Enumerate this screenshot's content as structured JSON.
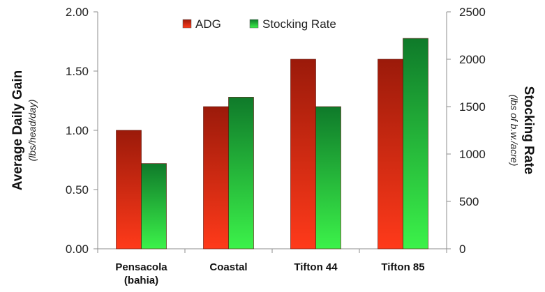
{
  "chart_data": {
    "type": "bar",
    "categories": [
      [
        "Pensacola",
        "(bahia)"
      ],
      [
        "Coastal"
      ],
      [
        "Tifton 44"
      ],
      [
        "Tifton 85"
      ]
    ],
    "series": [
      {
        "name": "ADG",
        "axis": "left",
        "values": [
          1.0,
          1.2,
          1.6,
          1.6
        ],
        "color_top": "#9b1a0a",
        "color_bottom": "#ff3a1a"
      },
      {
        "name": "Stocking Rate",
        "axis": "right",
        "values": [
          900,
          1600,
          1500,
          2220
        ],
        "color_top": "#0f7a2a",
        "color_bottom": "#3cf24a"
      }
    ],
    "y_left": {
      "label": "Average Daily Gain",
      "sublabel": "(lbs/head/day)",
      "lim": [
        0,
        2.0
      ],
      "ticks": [
        "0.00",
        "0.50",
        "1.00",
        "1.50",
        "2.00"
      ]
    },
    "y_right": {
      "label": "Stocking Rate",
      "sublabel": "(lbs of b.w./acre)",
      "lim": [
        0,
        2500
      ],
      "ticks": [
        "0",
        "500",
        "1000",
        "1500",
        "2000",
        "2500"
      ]
    },
    "legend": {
      "position": "top-center"
    },
    "grid": false
  }
}
